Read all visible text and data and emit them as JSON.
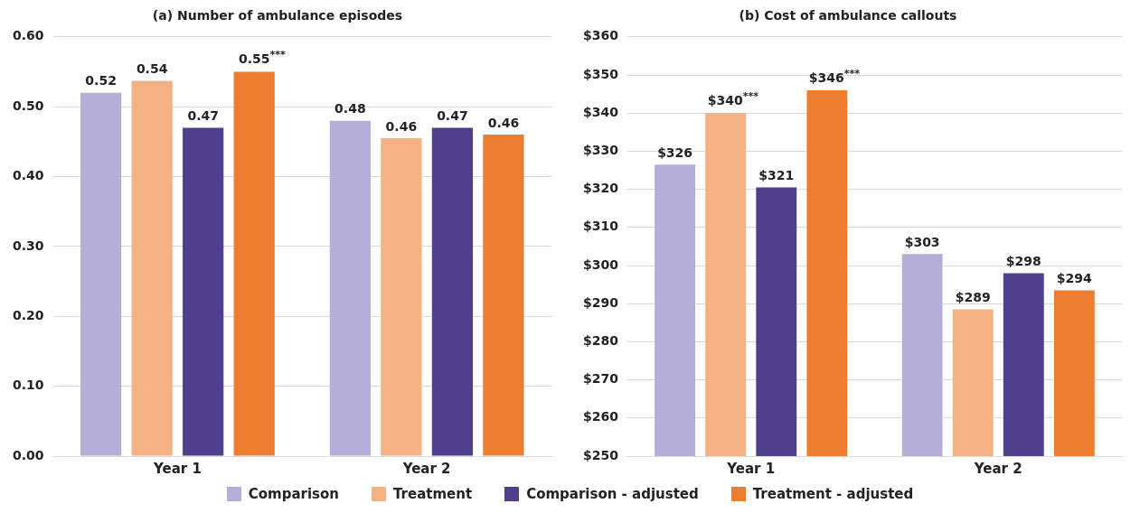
{
  "chart_data": [
    {
      "type": "bar",
      "title": "(a) Number of ambulance episodes",
      "categories": [
        "Year 1",
        "Year 2"
      ],
      "series": [
        {
          "name": "Comparison",
          "color": "#b5aed6",
          "values": [
            0.52,
            0.48
          ],
          "value_labels": [
            "0.52",
            "0.48"
          ]
        },
        {
          "name": "Treatment",
          "color": "#f4b183",
          "values": [
            0.537,
            0.455
          ],
          "value_labels": [
            "0.54",
            "0.46"
          ]
        },
        {
          "name": "Comparison - adjusted",
          "color": "#4f3f8c",
          "values": [
            0.47,
            0.47
          ],
          "value_labels": [
            "0.47",
            "0.47"
          ]
        },
        {
          "name": "Treatment - adjusted",
          "color": "#ed7d31",
          "values": [
            0.55,
            0.46
          ],
          "value_labels": [
            "0.55$^{***}$",
            "0.46"
          ]
        }
      ],
      "ylim": [
        0,
        0.6
      ],
      "yticks": [
        {
          "value": 0,
          "label": "0.00"
        },
        {
          "value": 0.1,
          "label": "0.10"
        },
        {
          "value": 0.2,
          "label": "0.20"
        },
        {
          "value": 0.3,
          "label": "0.30"
        },
        {
          "value": 0.4,
          "label": "0.40"
        },
        {
          "value": 0.5,
          "label": "0.50"
        },
        {
          "value": 0.6,
          "label": "0.60"
        }
      ],
      "grid": "y",
      "legend": "bottom"
    },
    {
      "type": "bar",
      "title": "(b) Cost of ambulance callouts",
      "categories": [
        "Year 1",
        "Year 2"
      ],
      "series": [
        {
          "name": "Comparison",
          "color": "#b5aed6",
          "values": [
            326.5,
            303
          ],
          "value_labels": [
            "$326",
            "$303"
          ]
        },
        {
          "name": "Treatment",
          "color": "#f4b183",
          "values": [
            340,
            288.5
          ],
          "value_labels": [
            "$340$^{***}$",
            "$289"
          ]
        },
        {
          "name": "Comparison - adjusted",
          "color": "#4f3f8c",
          "values": [
            320.5,
            298
          ],
          "value_labels": [
            "$321",
            "$298"
          ]
        },
        {
          "name": "Treatment - adjusted",
          "color": "#ed7d31",
          "values": [
            346,
            293.5
          ],
          "value_labels": [
            "$346$^{***}$",
            "$294"
          ]
        }
      ],
      "ylim": [
        250,
        360
      ],
      "yticks": [
        {
          "value": 250,
          "label": "$250"
        },
        {
          "value": 260,
          "label": "$260"
        },
        {
          "value": 270,
          "label": "$270"
        },
        {
          "value": 280,
          "label": "$280"
        },
        {
          "value": 290,
          "label": "$290"
        },
        {
          "value": 300,
          "label": "$300"
        },
        {
          "value": 310,
          "label": "$310"
        },
        {
          "value": 320,
          "label": "$320"
        },
        {
          "value": 330,
          "label": "$330"
        },
        {
          "value": 340,
          "label": "$340"
        },
        {
          "value": 350,
          "label": "$350"
        },
        {
          "value": 360,
          "label": "$360"
        }
      ],
      "grid": "y",
      "legend": "bottom"
    }
  ]
}
